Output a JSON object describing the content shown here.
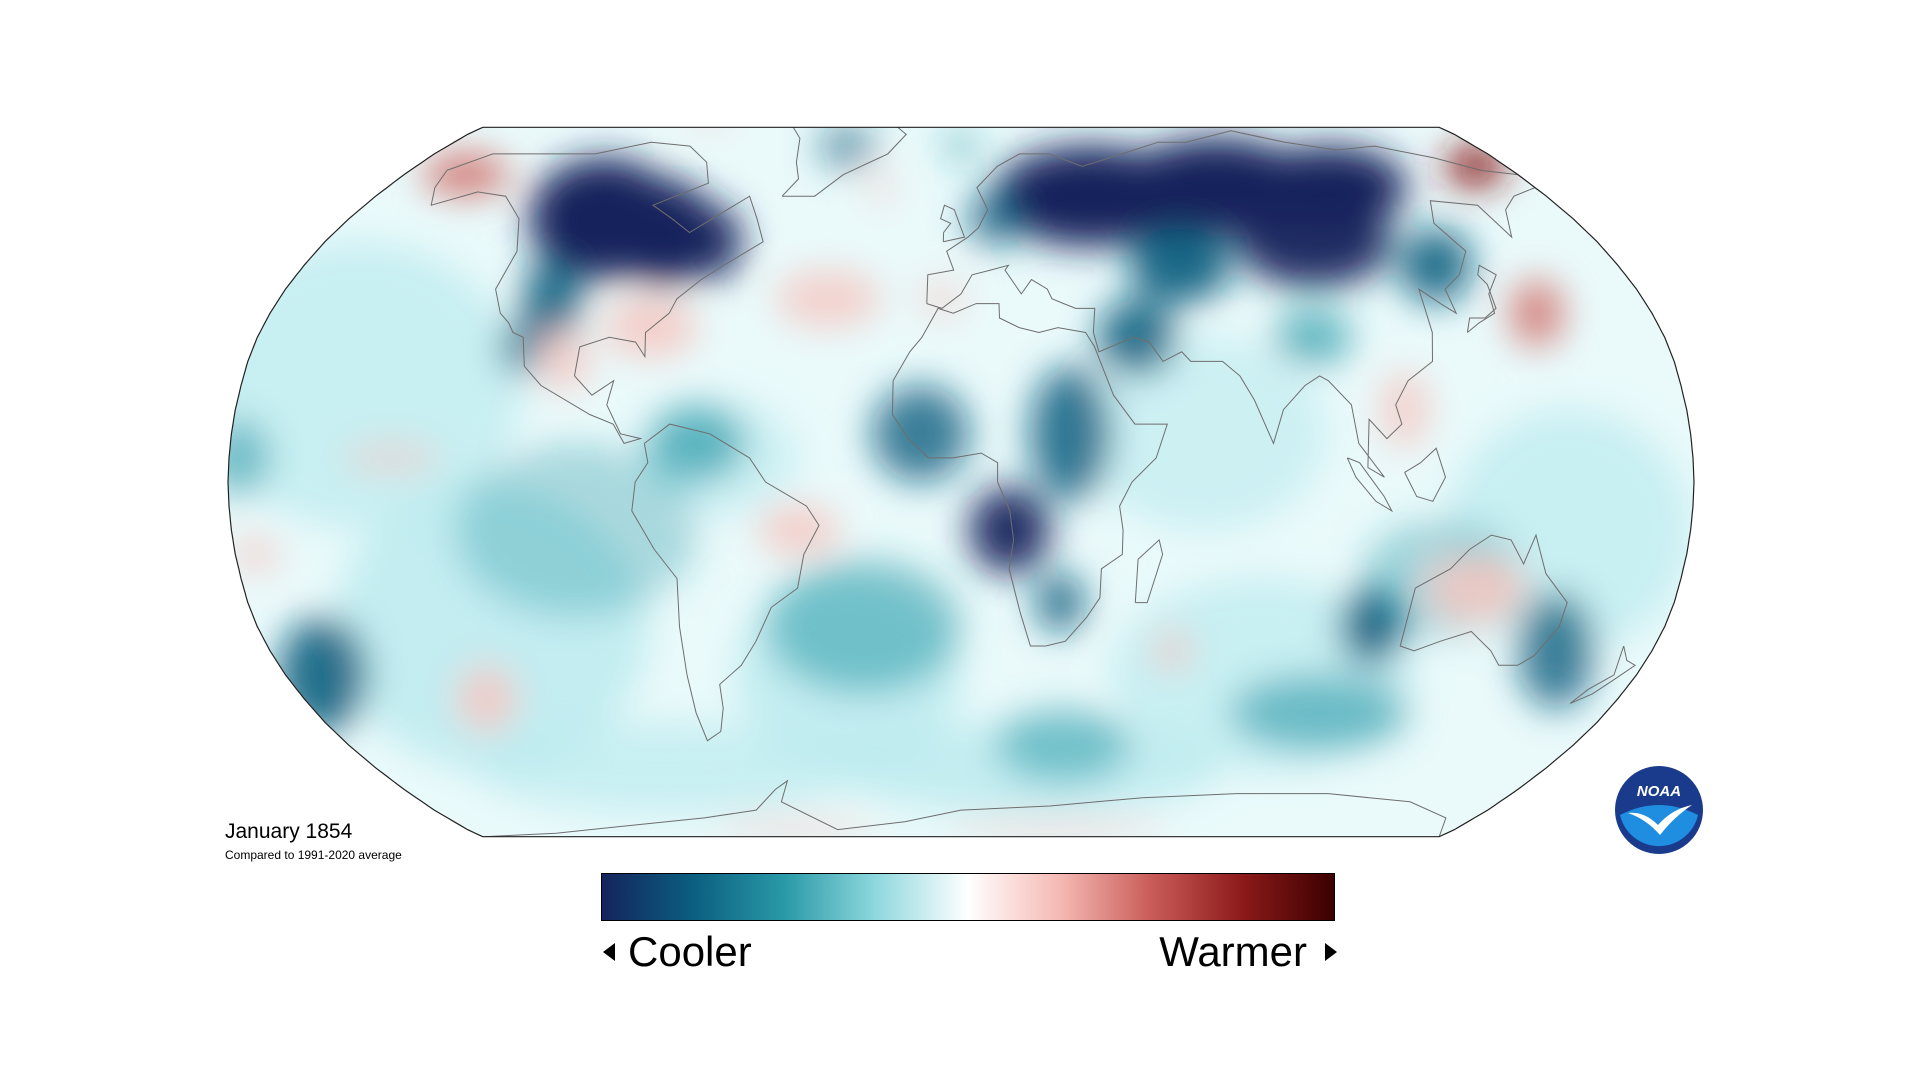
{
  "map": {
    "projection": "robinson",
    "title": "January 1854",
    "subtitle": "Compared to 1991-2020 average"
  },
  "legend": {
    "cool_label": "Cooler",
    "warm_label": "Warmer",
    "colors": [
      "#14245c",
      "#0b5f80",
      "#2a9aa8",
      "#8fd8de",
      "#ffffff",
      "#f5b9b4",
      "#c95c58",
      "#8c1a1a",
      "#3c0000"
    ]
  },
  "logo": {
    "label": "NOAA",
    "ring_color": "#1a3a8c",
    "center_color": "#1f8de0",
    "bird_color": "#ffffff"
  },
  "anomaly_colors": {
    "much_cooler": "#14245c",
    "cooler": "#0b5f80",
    "slightly_cooler": "#2a9aa8",
    "near_normal_cool": "#b9eaee",
    "near_normal": "#eafafb",
    "slightly_warmer": "#f5c6c1",
    "warmer": "#d0736d",
    "much_warmer": "#8c1a1a"
  }
}
